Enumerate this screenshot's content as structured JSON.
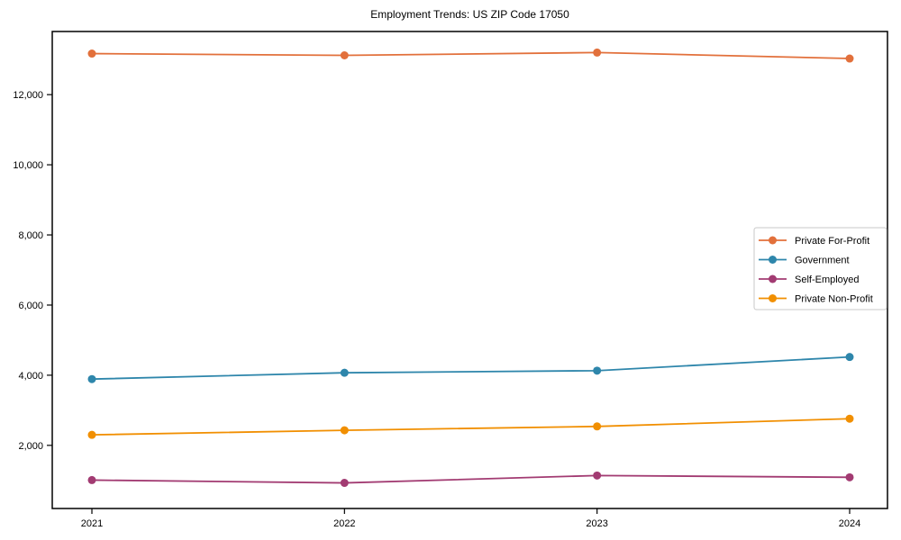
{
  "page": {
    "background": "#ffffff",
    "text_color": "#000000"
  },
  "chart_data": {
    "type": "line",
    "title": "Employment Trends: US ZIP Code 17050",
    "categories": [
      "2021",
      "2022",
      "2023",
      "2024"
    ],
    "series": [
      {
        "name": "Private For-Profit",
        "color": "#E2703B",
        "values": [
          13170,
          13120,
          13200,
          13030
        ]
      },
      {
        "name": "Government",
        "color": "#2E86AB",
        "values": [
          3890,
          4070,
          4130,
          4520
        ]
      },
      {
        "name": "Self-Employed",
        "color": "#A23B72",
        "values": [
          1010,
          930,
          1140,
          1090
        ]
      },
      {
        "name": "Private Non-Profit",
        "color": "#F18F01",
        "values": [
          2300,
          2430,
          2540,
          2760
        ]
      }
    ],
    "xlabel": "",
    "ylabel": "",
    "ylim": [
      200,
      13800
    ],
    "yticks": [
      2000,
      4000,
      6000,
      8000,
      10000,
      12000
    ],
    "ytick_labels": [
      "2,000",
      "4,000",
      "6,000",
      "8,000",
      "10,000",
      "12,000"
    ],
    "grid": false,
    "marker": "circle",
    "legend": {
      "position": "center right",
      "border_color": "#c8c8c8",
      "background": "#ffffff",
      "entries": [
        "Private For-Profit",
        "Government",
        "Self-Employed",
        "Private Non-Profit"
      ]
    },
    "axis_color": "#000000"
  }
}
